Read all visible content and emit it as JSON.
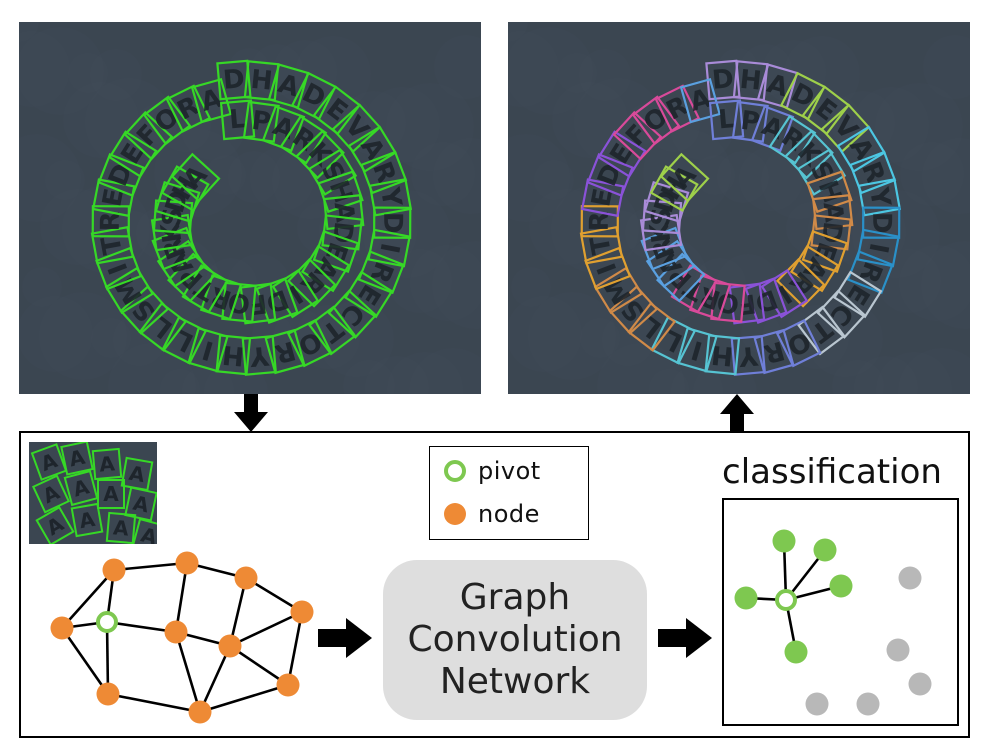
{
  "legend": {
    "pivot_label": "pivot",
    "node_label": "node"
  },
  "gcn": {
    "line1": "Graph",
    "line2": "Convolution",
    "line3": "Network"
  },
  "classification": {
    "title": "classification"
  },
  "left_panel_text": [
    "DHA",
    "DEVARY",
    "DIRECTORY",
    "ARY",
    "HILLS",
    "MITRE",
    "DEFORAL",
    "PARK",
    "SHADE",
    "ARID",
    "FORT",
    "PARKS"
  ],
  "colors": {
    "detect_green": "#36d826",
    "pivot_green": "#7ec850",
    "node_orange": "#ee8a35",
    "gray_node": "#b8b8b8",
    "gcn_fill": "#dedede",
    "photo_bg": "#3b4651"
  }
}
